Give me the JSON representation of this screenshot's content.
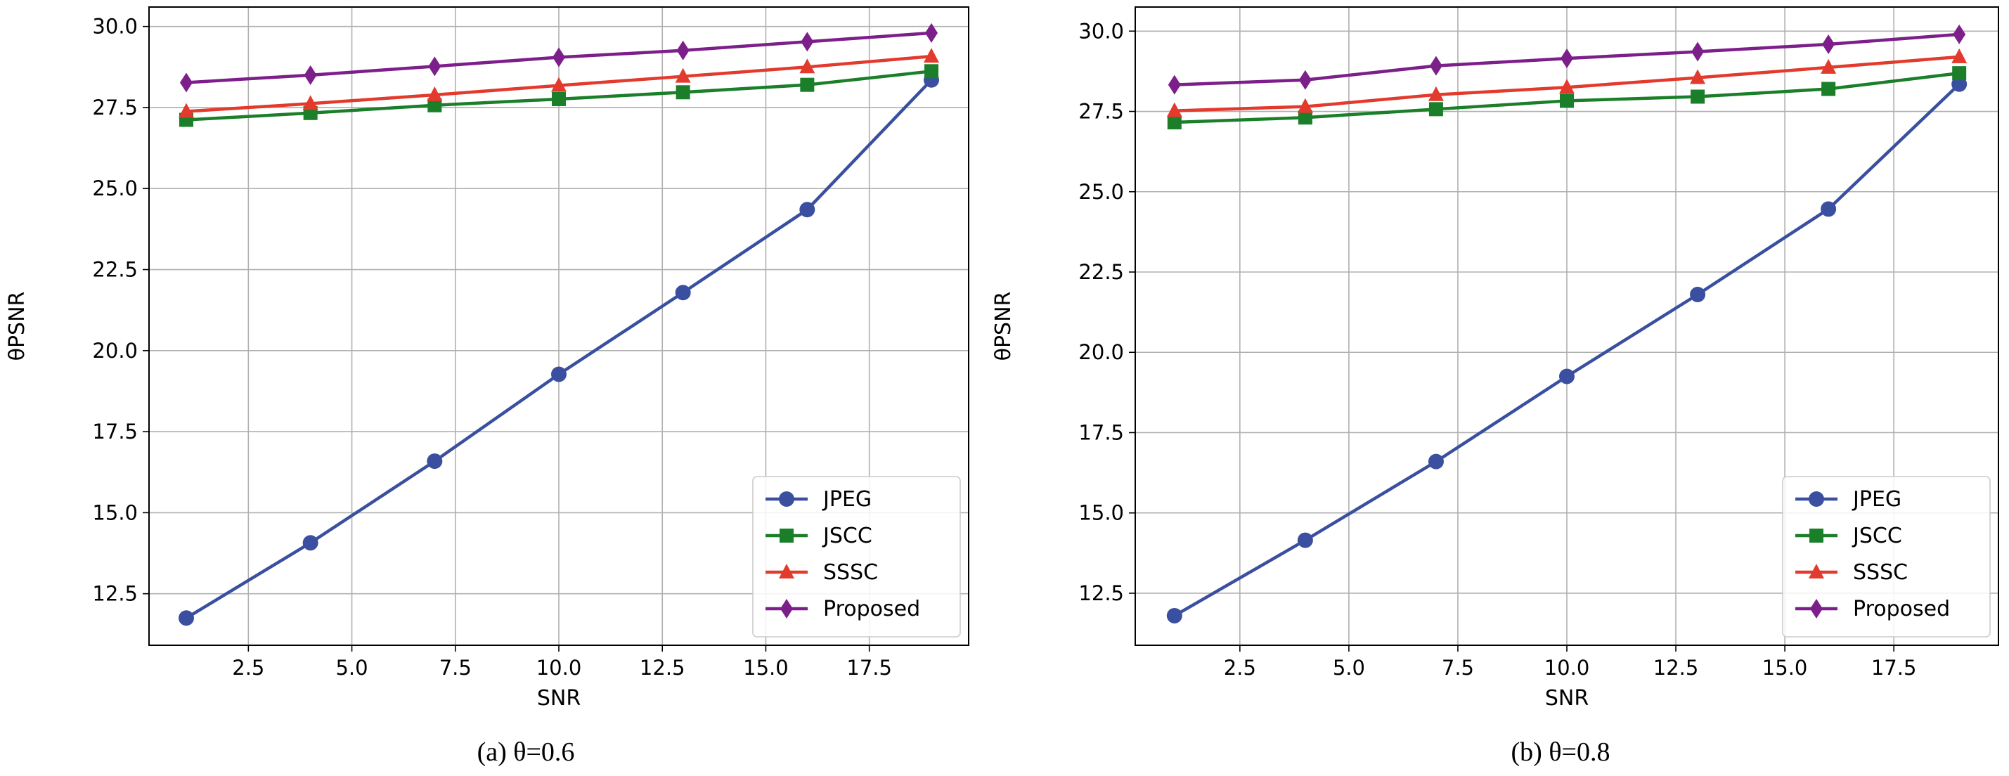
{
  "chart_data": [
    {
      "type": "line",
      "caption": "(a)  θ=0.6",
      "title": "",
      "xlabel": "SNR",
      "ylabel": "θPSNR",
      "xlim": [
        0.1,
        19.9
      ],
      "ylim": [
        10.91,
        30.6
      ],
      "xticks": [
        2.5,
        5.0,
        7.5,
        10.0,
        12.5,
        15.0,
        17.5
      ],
      "xtick_labels": [
        "2.5",
        "5.0",
        "7.5",
        "10.0",
        "12.5",
        "15.0",
        "17.5"
      ],
      "yticks": [
        12.5,
        15.0,
        17.5,
        20.0,
        22.5,
        25.0,
        27.5,
        30.0
      ],
      "ytick_labels": [
        "12.5",
        "15.0",
        "17.5",
        "20.0",
        "22.5",
        "25.0",
        "27.5",
        "30.0"
      ],
      "grid": true,
      "legend_position": "lower-right",
      "x": [
        1,
        4,
        7,
        10,
        13,
        16,
        19
      ],
      "series": [
        {
          "name": "JPEG",
          "color": "#3a4f9f",
          "marker": "circle",
          "values": [
            11.75,
            14.07,
            16.59,
            19.27,
            21.79,
            24.35,
            28.35
          ]
        },
        {
          "name": "JSCC",
          "color": "#1b7f2a",
          "marker": "square",
          "values": [
            27.12,
            27.33,
            27.57,
            27.76,
            27.97,
            28.2,
            28.62
          ]
        },
        {
          "name": "SSSC",
          "color": "#e23a2d",
          "marker": "triangle",
          "values": [
            27.38,
            27.62,
            27.89,
            28.18,
            28.46,
            28.75,
            29.08
          ]
        },
        {
          "name": "Proposed",
          "color": "#7d1f8a",
          "marker": "diamond",
          "values": [
            28.27,
            28.5,
            28.77,
            29.05,
            29.26,
            29.53,
            29.8
          ]
        }
      ]
    },
    {
      "type": "line",
      "caption": "(b)  θ=0.8",
      "title": "",
      "xlabel": "SNR",
      "ylabel": "θPSNR",
      "xlim": [
        0.1,
        19.9
      ],
      "ylim": [
        10.88,
        30.75
      ],
      "xticks": [
        2.5,
        5.0,
        7.5,
        10.0,
        12.5,
        15.0,
        17.5
      ],
      "xtick_labels": [
        "2.5",
        "5.0",
        "7.5",
        "10.0",
        "12.5",
        "15.0",
        "17.5"
      ],
      "yticks": [
        12.5,
        15.0,
        17.5,
        20.0,
        22.5,
        25.0,
        27.5,
        30.0
      ],
      "ytick_labels": [
        "12.5",
        "15.0",
        "17.5",
        "20.0",
        "22.5",
        "25.0",
        "27.5",
        "30.0"
      ],
      "grid": true,
      "legend_position": "lower-right",
      "x": [
        1,
        4,
        7,
        10,
        13,
        16,
        19
      ],
      "series": [
        {
          "name": "JPEG",
          "color": "#3a4f9f",
          "marker": "circle",
          "values": [
            11.8,
            14.15,
            16.6,
            19.25,
            21.8,
            24.46,
            28.35
          ]
        },
        {
          "name": "JSCC",
          "color": "#1b7f2a",
          "marker": "square",
          "values": [
            27.16,
            27.31,
            27.57,
            27.83,
            27.96,
            28.2,
            28.69
          ]
        },
        {
          "name": "SSSC",
          "color": "#e23a2d",
          "marker": "triangle",
          "values": [
            27.52,
            27.65,
            28.02,
            28.25,
            28.55,
            28.87,
            29.2
          ]
        },
        {
          "name": "Proposed",
          "color": "#7d1f8a",
          "marker": "diamond",
          "values": [
            28.33,
            28.48,
            28.92,
            29.15,
            29.36,
            29.59,
            29.9
          ]
        }
      ]
    }
  ]
}
